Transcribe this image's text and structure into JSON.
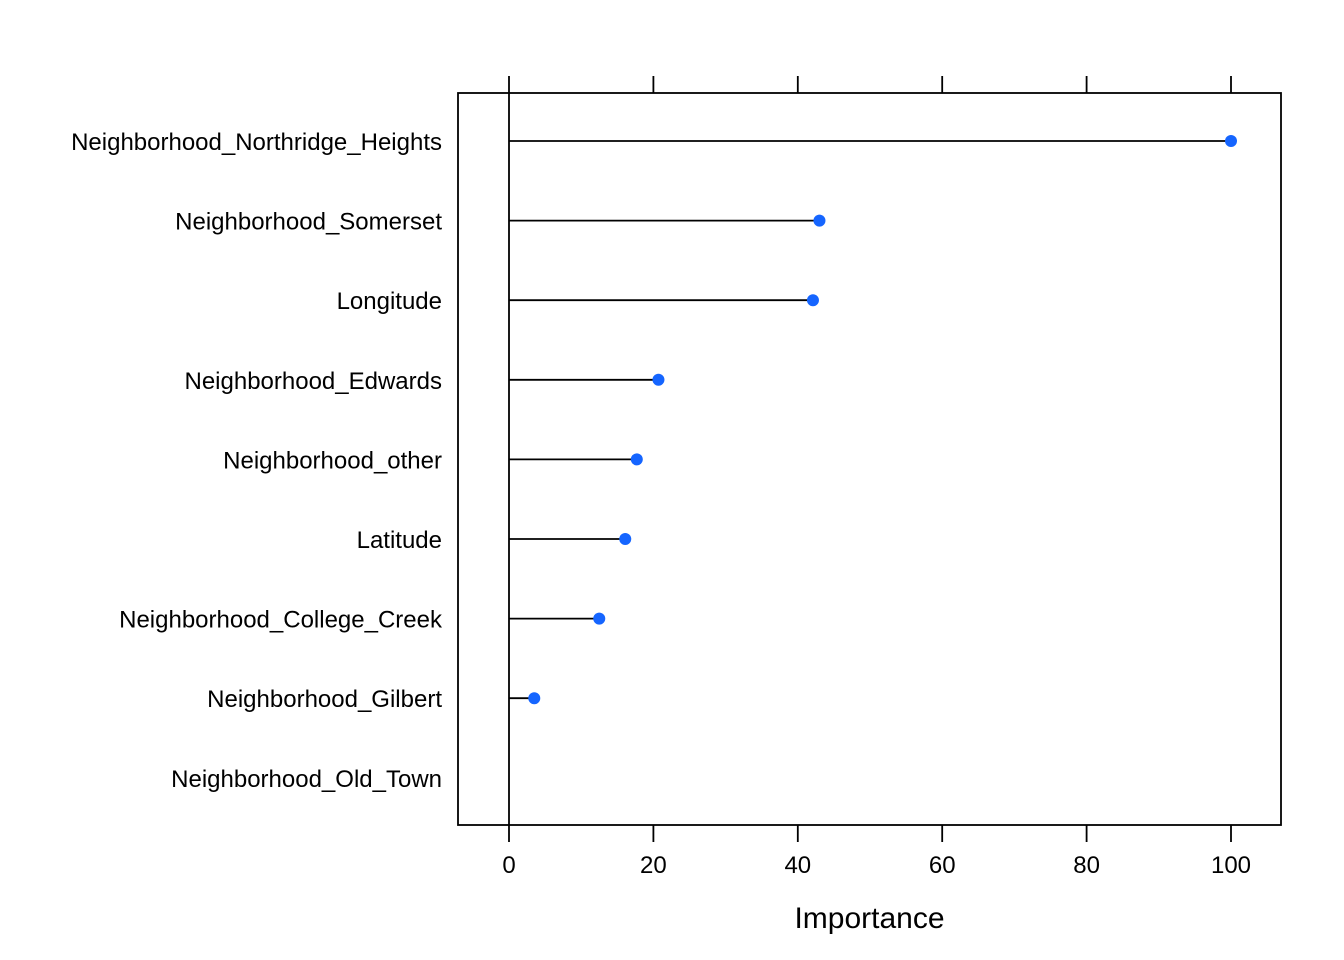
{
  "chart_data": {
    "type": "dot",
    "title": "",
    "xlabel": "Importance",
    "ylabel": "",
    "xlim": [
      -7,
      107
    ],
    "xticks": [
      0,
      20,
      40,
      60,
      80,
      100
    ],
    "grid": false,
    "legend": "none",
    "point_color": "#1565FF",
    "categories": [
      "Neighborhood_Northridge_Heights",
      "Neighborhood_Somerset",
      "Longitude",
      "Neighborhood_Edwards",
      "Neighborhood_other",
      "Latitude",
      "Neighborhood_College_Creek",
      "Neighborhood_Gilbert",
      "Neighborhood_Old_Town"
    ],
    "values": [
      100,
      43.0,
      42.1,
      20.7,
      17.7,
      16.1,
      12.5,
      3.5,
      0
    ]
  }
}
